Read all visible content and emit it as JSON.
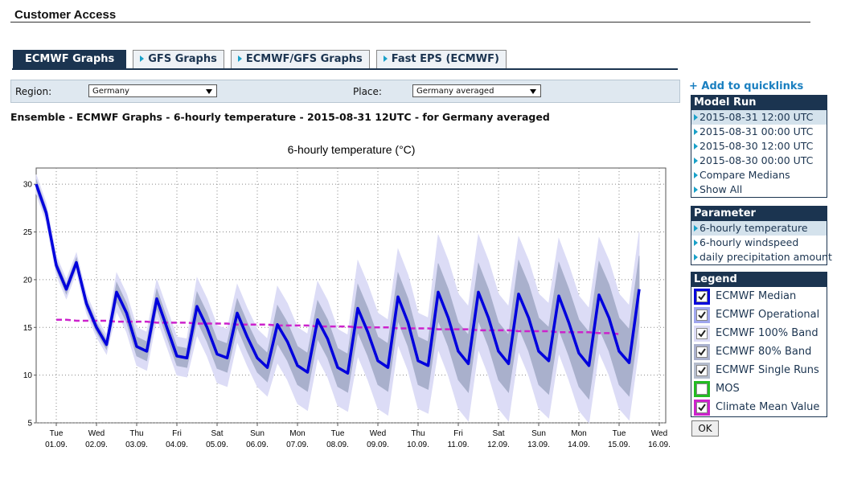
{
  "header": {
    "title": "Customer Access"
  },
  "tabs": [
    "ECMWF Graphs",
    "GFS Graphs",
    "ECMWF/GFS Graphs",
    "Fast EPS (ECMWF)"
  ],
  "filters": {
    "region_label": "Region:",
    "region": "Germany",
    "place_label": "Place:",
    "place": "Germany averaged"
  },
  "subtitle": "Ensemble - ECMWF Graphs - 6-hourly temperature - 2015-08-31 12UTC - for Germany averaged",
  "sidebar": {
    "quicklinks": "+ Add to quicklinks",
    "model_run": {
      "title": "Model Run",
      "items": [
        "2015-08-31 12:00 UTC",
        "2015-08-31 00:00 UTC",
        "2015-08-30 12:00 UTC",
        "2015-08-30 00:00 UTC",
        "Compare Medians",
        "Show All"
      ]
    },
    "parameter": {
      "title": "Parameter",
      "items": [
        "6-hourly temperature",
        "6-hourly windspeed",
        "daily precipitation amount"
      ]
    },
    "legend_title": "Legend",
    "ok": "OK"
  },
  "chart_data": {
    "type": "line",
    "title": "6-hourly temperature (°C)",
    "ylim": [
      5,
      31.7
    ],
    "yticks": [
      5,
      10,
      15,
      20,
      25,
      30
    ],
    "grid": true,
    "xticks": [
      {
        "day": "Tue",
        "date": "01.09."
      },
      {
        "day": "Wed",
        "date": "02.09."
      },
      {
        "day": "Thu",
        "date": "03.09."
      },
      {
        "day": "Fri",
        "date": "04.09."
      },
      {
        "day": "Sat",
        "date": "05.09."
      },
      {
        "day": "Sun",
        "date": "06.09."
      },
      {
        "day": "Mon",
        "date": "07.09."
      },
      {
        "day": "Tue",
        "date": "08.09."
      },
      {
        "day": "Wed",
        "date": "09.09."
      },
      {
        "day": "Thu",
        "date": "10.09."
      },
      {
        "day": "Fri",
        "date": "11.09."
      },
      {
        "day": "Sat",
        "date": "12.09."
      },
      {
        "day": "Sun",
        "date": "13.09."
      },
      {
        "day": "Mon",
        "date": "14.09."
      },
      {
        "day": "Tue",
        "date": "15.09."
      },
      {
        "day": "Wed",
        "date": "16.09."
      }
    ],
    "series": [
      {
        "name": "ECMWF Median",
        "color": "#0000dd",
        "checked": true,
        "values": [
          30,
          27,
          21.5,
          19,
          21.8,
          17.5,
          15,
          13.2,
          18.7,
          16.5,
          13,
          12.5,
          18,
          15,
          12,
          11.8,
          17.2,
          15,
          12.2,
          11.8,
          16.5,
          14,
          11.8,
          10.8,
          15.3,
          13.5,
          11,
          10.3,
          15.8,
          13.8,
          10.8,
          10.2,
          17,
          14.5,
          11.5,
          10.8,
          18.2,
          15.5,
          11.5,
          11,
          18.7,
          16,
          12.5,
          11.2,
          18.7,
          16,
          12.5,
          11.2,
          18.5,
          16,
          12.5,
          11.5,
          18.3,
          15.5,
          12.3,
          11,
          18.4,
          16,
          12.5,
          11.3,
          19
        ]
      },
      {
        "name": "ECMWF Operational",
        "color": "#9fa6ee",
        "checked": true
      },
      {
        "name": "ECMWF 100% Band",
        "color": "#dcdcf6",
        "checked": true,
        "low": [
          29,
          26,
          20.5,
          18,
          20.8,
          16.5,
          14,
          12.2,
          16.7,
          14.5,
          11,
          10.5,
          16,
          13,
          10,
          9.8,
          14.2,
          12,
          9.2,
          8.8,
          13.5,
          11,
          8.8,
          7.8,
          11.3,
          9.5,
          7,
          6.3,
          11.8,
          9.8,
          6.8,
          6.2,
          12,
          9.5,
          6.5,
          5.8,
          13.2,
          10.5,
          6.5,
          6,
          12.7,
          10,
          6.5,
          5.2,
          12.7,
          10,
          6.5,
          5.2,
          12.5,
          10,
          6.5,
          5.5,
          12.3,
          9.5,
          6.3,
          5,
          12.4,
          10,
          6.5,
          5.3,
          13
        ],
        "high": [
          31,
          28,
          22.5,
          20,
          22.8,
          18.5,
          16,
          14.2,
          20.7,
          18.5,
          15,
          14.5,
          20,
          17,
          14,
          13.8,
          20.2,
          18,
          15.2,
          14.8,
          19.5,
          17,
          14.8,
          13.8,
          19.3,
          17.5,
          15,
          14.3,
          19.8,
          17.8,
          14.8,
          14.2,
          22,
          19.5,
          16.5,
          15.8,
          23.2,
          20.5,
          16.5,
          16,
          24.7,
          22,
          18.5,
          17.2,
          24.7,
          22,
          18.5,
          17.2,
          24.5,
          22,
          18.5,
          17.5,
          24.3,
          21.5,
          18.3,
          17,
          24.4,
          22,
          18.5,
          17.3,
          25
        ]
      },
      {
        "name": "ECMWF 80% Band",
        "color": "#a9b0cc",
        "checked": true,
        "low": [
          29.5,
          26.5,
          21,
          18.5,
          21.3,
          17,
          14.5,
          12.7,
          17.7,
          15.5,
          12,
          11.5,
          17,
          14,
          11,
          10.8,
          15.7,
          13.5,
          10.7,
          10.3,
          15,
          12.5,
          10.3,
          9.3,
          13.3,
          11.5,
          9,
          8.3,
          13.8,
          11.8,
          8.8,
          8.2,
          14.5,
          12,
          9,
          8.3,
          15.7,
          13,
          9,
          8.5,
          15.7,
          13,
          9.5,
          8.2,
          15.7,
          13,
          9.5,
          8.2,
          15,
          12.5,
          9,
          8,
          14.8,
          12,
          8.8,
          7.5,
          14.9,
          12.5,
          9,
          7.8,
          15.5
        ],
        "high": [
          30.5,
          27.5,
          22,
          19.5,
          22.3,
          18,
          15.5,
          13.7,
          19.7,
          17.5,
          14,
          13.5,
          19,
          16,
          13,
          12.8,
          18.7,
          16.5,
          13.7,
          13.3,
          18,
          15.5,
          13.3,
          12.3,
          17.3,
          15.5,
          13,
          12.3,
          17.8,
          15.8,
          12.8,
          12.2,
          19.5,
          17,
          14,
          13.3,
          20.7,
          18,
          14,
          13.5,
          21.7,
          19,
          15.5,
          14.2,
          21.7,
          19,
          15.5,
          14.2,
          22,
          19.5,
          16,
          15,
          21.8,
          19,
          15.8,
          14.5,
          21.9,
          19.5,
          16,
          14.8,
          22.5
        ]
      },
      {
        "name": "ECMWF Single Runs",
        "color": "#b4bccc",
        "checked": true
      },
      {
        "name": "MOS",
        "color": "#22bb22",
        "checked": false
      },
      {
        "name": "Climate Mean Value",
        "color": "#cc22cc",
        "checked": true,
        "values": [
          null,
          null,
          15.8,
          15.8,
          15.7,
          15.7,
          15.7,
          15.7,
          15.6,
          15.6,
          15.6,
          15.6,
          15.5,
          15.5,
          15.5,
          15.5,
          15.4,
          15.4,
          15.4,
          15.4,
          15.3,
          15.3,
          15.3,
          15.3,
          15.2,
          15.2,
          15.2,
          15.2,
          15.1,
          15.1,
          15.1,
          15.1,
          15.0,
          15.0,
          15.0,
          15.0,
          14.9,
          14.9,
          14.9,
          14.9,
          14.8,
          14.8,
          14.8,
          14.8,
          14.7,
          14.7,
          14.7,
          14.7,
          14.6,
          14.6,
          14.6,
          14.6,
          14.5,
          14.5,
          14.5,
          14.5,
          14.4,
          14.4,
          14.3,
          null,
          null
        ]
      }
    ]
  }
}
